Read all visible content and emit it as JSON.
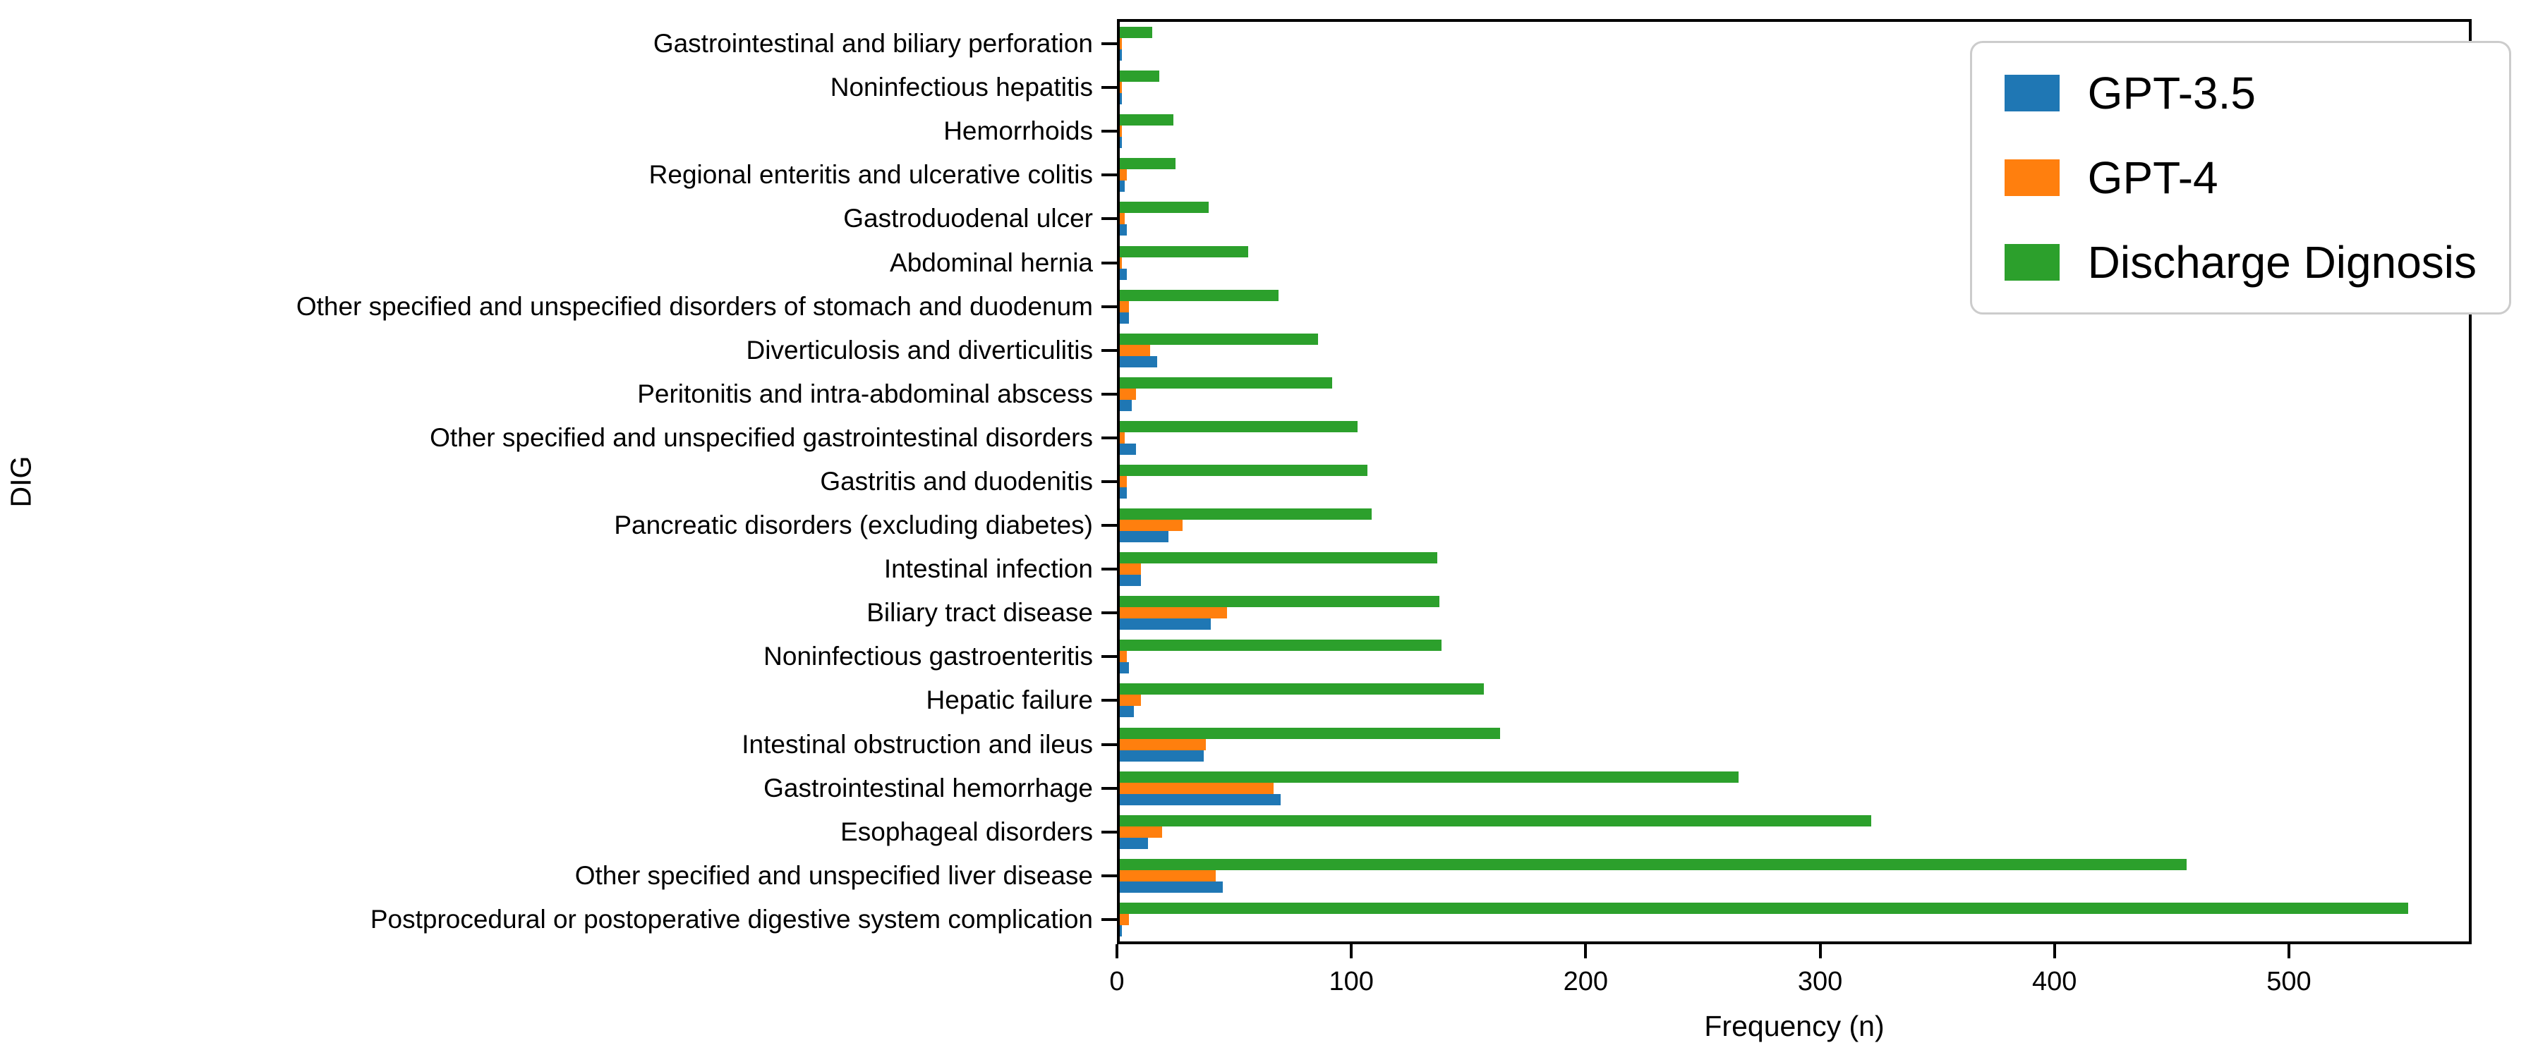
{
  "figure": {
    "xlabel": "Frequency (n)",
    "ylabel": "DIG"
  },
  "chart_data": {
    "type": "bar",
    "orientation": "horizontal",
    "title": "",
    "xlabel": "Frequency (n)",
    "ylabel": "DIG",
    "xlim": [
      0,
      578
    ],
    "x_ticks": [
      0,
      100,
      200,
      300,
      400,
      500
    ],
    "grid": false,
    "legend_position": "upper right",
    "axis_color": "#000000",
    "categories": [
      "Gastrointestinal and biliary perforation",
      "Noninfectious hepatitis",
      "Hemorrhoids",
      "Regional enteritis and ulcerative colitis",
      "Gastroduodenal ulcer",
      "Abdominal hernia",
      "Other specified and unspecified disorders of stomach and duodenum",
      "Diverticulosis and diverticulitis",
      "Peritonitis and intra-abdominal abscess",
      "Other specified and unspecified gastrointestinal disorders",
      "Gastritis and duodenitis",
      "Pancreatic disorders (excluding diabetes)",
      "Intestinal infection",
      "Biliary tract disease",
      "Noninfectious gastroenteritis",
      "Hepatic failure",
      "Intestinal obstruction and ileus",
      "Gastrointestinal hemorrhage",
      "Esophageal disorders",
      "Other specified and unspecified liver disease",
      "Postprocedural or postoperative digestive system complication"
    ],
    "series": [
      {
        "name": "GPT-3.5",
        "color": "#1f77b4",
        "values": [
          1,
          1,
          1,
          2,
          3,
          3,
          4,
          16,
          5,
          7,
          3,
          21,
          9,
          39,
          4,
          6,
          36,
          69,
          12,
          44,
          1
        ]
      },
      {
        "name": "GPT-4",
        "color": "#ff7f0e",
        "values": [
          1,
          1,
          1,
          3,
          2,
          1,
          4,
          13,
          7,
          2,
          3,
          27,
          9,
          46,
          3,
          9,
          37,
          66,
          18,
          41,
          4
        ]
      },
      {
        "name": "Discharge Dignosis",
        "color": "#2ca02c",
        "values": [
          14,
          17,
          23,
          24,
          38,
          55,
          68,
          85,
          91,
          102,
          106,
          108,
          136,
          137,
          138,
          156,
          163,
          265,
          322,
          457,
          552
        ]
      }
    ]
  }
}
